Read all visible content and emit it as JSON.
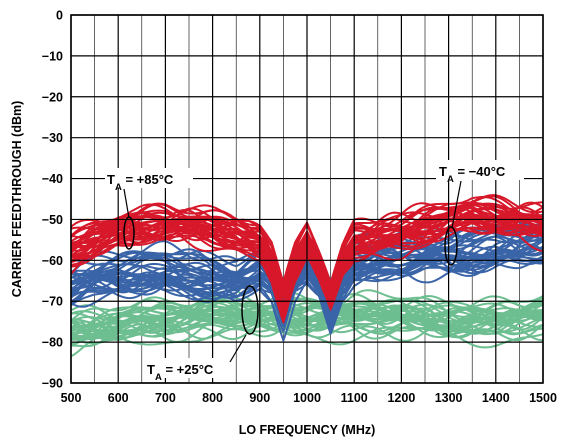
{
  "chart_data": {
    "type": "line",
    "xlabel": "LO FREQUENCY (MHz)",
    "ylabel": "CARRIER FEEDTHROUGH (dBm)",
    "xlim": [
      500,
      1500
    ],
    "ylim": [
      -90,
      0
    ],
    "xticks": [
      500,
      600,
      700,
      800,
      900,
      1000,
      1100,
      1200,
      1300,
      1400,
      1500
    ],
    "yticks": [
      0,
      -10,
      -20,
      -30,
      -40,
      -50,
      -60,
      -70,
      -80,
      -90
    ],
    "x_tick_labels": [
      "500",
      "600",
      "700",
      "800",
      "900",
      "1000",
      "1100",
      "1200",
      "1300",
      "1400",
      "1500"
    ],
    "y_tick_labels": [
      "0",
      "−10",
      "−20",
      "−30",
      "−40",
      "−50",
      "−60",
      "−70",
      "−80",
      "−90"
    ],
    "grid": true,
    "x_minor_grid_step": 50,
    "legend": "none",
    "annotations": [
      {
        "prefix": "T",
        "subscript": "A",
        "value": " = +85°C"
      },
      {
        "prefix": "T",
        "subscript": "A",
        "value": " = −40°C"
      },
      {
        "prefix": "T",
        "subscript": "A",
        "value": " = +25°C"
      }
    ],
    "series": [
      {
        "color": "#d7182a",
        "x": [
          500,
          550,
          600,
          650,
          700,
          750,
          800,
          850,
          900,
          925,
          950,
          975,
          1000,
          1025,
          1050,
          1075,
          1100,
          1150,
          1200,
          1250,
          1300,
          1350,
          1400,
          1450,
          1500
        ],
        "y": [
          -57,
          -54,
          -52,
          -51,
          -50.5,
          -51,
          -52,
          -53,
          -55,
          -60,
          -70,
          -60,
          -54,
          -60,
          -68,
          -60,
          -55,
          -54,
          -53,
          -51,
          -49,
          -48,
          -49,
          -50,
          -51
        ],
        "band_halfwidth": 3.5
      },
      {
        "color": "#3a64a8",
        "x": [
          500,
          550,
          600,
          650,
          700,
          750,
          800,
          850,
          900,
          925,
          950,
          975,
          1000,
          1025,
          1050,
          1075,
          1100,
          1150,
          1200,
          1250,
          1300,
          1350,
          1400,
          1450,
          1500
        ],
        "y": [
          -66,
          -64,
          -63,
          -62,
          -62,
          -63,
          -64,
          -65,
          -62,
          -64,
          -72,
          -63,
          -60,
          -63,
          -71,
          -63,
          -60,
          -60,
          -59,
          -58,
          -58,
          -57,
          -56,
          -56,
          -55
        ],
        "band_halfwidth": 4.5
      },
      {
        "color": "#6dbe90",
        "x": [
          500,
          550,
          600,
          650,
          700,
          750,
          800,
          850,
          900,
          950,
          1000,
          1050,
          1100,
          1150,
          1200,
          1250,
          1300,
          1350,
          1400,
          1450,
          1500
        ],
        "y": [
          -78,
          -77,
          -76,
          -75,
          -75,
          -74.5,
          -74,
          -74,
          -74,
          -74,
          -74,
          -74,
          -74,
          -74,
          -74,
          -74.5,
          -75,
          -75,
          -75,
          -74.5,
          -74
        ],
        "band_halfwidth": 4
      }
    ]
  }
}
